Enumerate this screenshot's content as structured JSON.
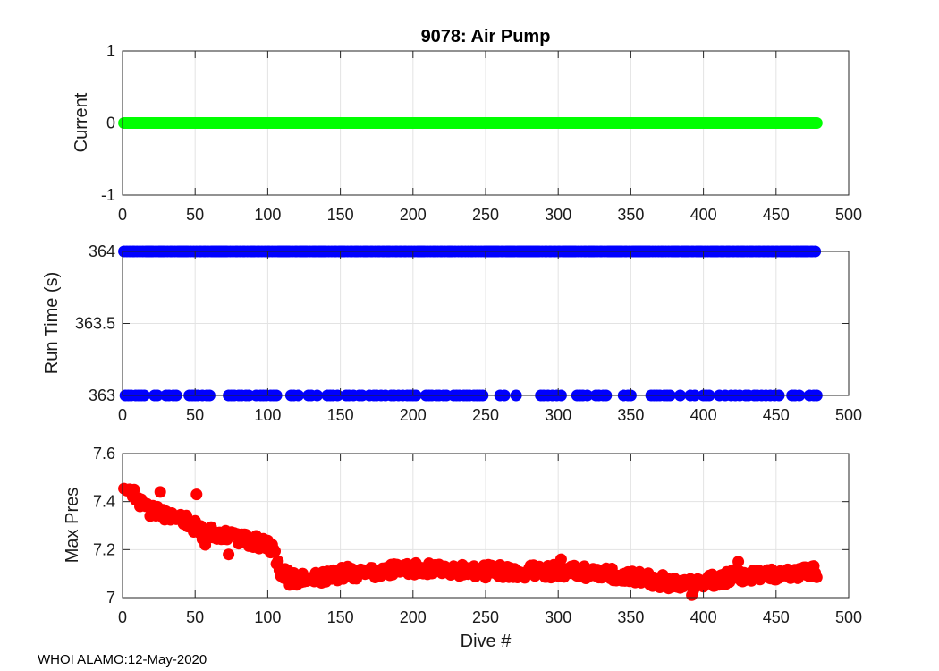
{
  "chart_data": {
    "type": "scatter",
    "title": "9078: Air Pump",
    "xlabel": "Dive #",
    "footer": "WHOI ALAMO:12-May-2020",
    "x_ticks": [
      "0",
      "50",
      "100",
      "150",
      "200",
      "250",
      "300",
      "350",
      "400",
      "450",
      "500"
    ],
    "xlim": [
      0,
      500
    ],
    "grid": true,
    "subplots": [
      {
        "ylabel": "Current",
        "ylim": [
          -1,
          1
        ],
        "y_ticks": [
          -1,
          0,
          1
        ],
        "y_tick_labels": [
          "-1",
          "0",
          "1"
        ],
        "color": "#00ff00",
        "series": {
          "name": "Current",
          "description": "constant value 0 for every dive 1-478",
          "x_range": [
            1,
            478
          ],
          "value": 0
        }
      },
      {
        "ylabel": "Run Time (s)",
        "ylim": [
          363,
          364
        ],
        "y_ticks": [
          363,
          363.5,
          364
        ],
        "y_tick_labels": [
          "363",
          "363.5",
          "364"
        ],
        "color": "#0000ff",
        "series": {
          "name": "Run Time",
          "x_range": [
            1,
            478
          ],
          "high_value": 364,
          "low_value": 363,
          "low_value_dives": [
            2,
            4,
            6,
            9,
            11,
            13,
            15,
            22,
            24,
            30,
            32,
            35,
            37,
            46,
            48,
            50,
            52,
            55,
            58,
            60,
            73,
            75,
            77,
            80,
            82,
            85,
            87,
            92,
            95,
            97,
            99,
            102,
            104,
            106,
            116,
            118,
            121,
            128,
            130,
            134,
            141,
            143,
            145,
            148,
            154,
            156,
            159,
            163,
            165,
            170,
            173,
            175,
            178,
            181,
            185,
            187,
            190,
            193,
            196,
            198,
            200,
            202,
            209,
            211,
            213,
            216,
            218,
            221,
            223,
            228,
            230,
            232,
            235,
            237,
            239,
            242,
            244,
            246,
            248,
            260,
            263,
            271,
            288,
            290,
            293,
            296,
            299,
            302,
            313,
            315,
            317,
            320,
            326,
            328,
            331,
            333,
            345,
            348,
            350,
            364,
            366,
            368,
            370,
            373,
            375,
            377,
            384,
            391,
            394,
            400,
            402,
            404,
            411,
            415,
            419,
            422,
            425,
            429,
            431,
            435,
            437,
            440,
            443,
            446,
            449,
            452,
            461,
            463,
            466,
            473,
            476,
            478
          ]
        }
      },
      {
        "ylabel": "Max Pres",
        "ylim": [
          7,
          7.6
        ],
        "y_ticks": [
          7,
          7.2,
          7.4,
          7.6
        ],
        "y_tick_labels": [
          "7",
          "7.2",
          "7.4",
          "7.6"
        ],
        "color": "#ff0000",
        "series": {
          "name": "Max Pres",
          "description": "about 7.44 at dive 1 declining to about 7.22 by dive 105, then dropping to about 7.08 and fluctuating around 7.07-7.12 through dive 478",
          "x_range": [
            1,
            478
          ],
          "anchors": [
            [
              1,
              7.44
            ],
            [
              5,
              7.44
            ],
            [
              20,
              7.36
            ],
            [
              40,
              7.34
            ],
            [
              55,
              7.27
            ],
            [
              70,
              7.26
            ],
            [
              85,
              7.24
            ],
            [
              100,
              7.22
            ],
            [
              104,
              7.21
            ],
            [
              108,
              7.12
            ],
            [
              115,
              7.08
            ],
            [
              130,
              7.08
            ],
            [
              150,
              7.1
            ],
            [
              200,
              7.12
            ],
            [
              250,
              7.11
            ],
            [
              300,
              7.11
            ],
            [
              350,
              7.09
            ],
            [
              390,
              7.05
            ],
            [
              400,
              7.06
            ],
            [
              420,
              7.09
            ],
            [
              450,
              7.1
            ],
            [
              478,
              7.11
            ]
          ],
          "noise": 0.028,
          "outliers": [
            [
              4,
              7.45
            ],
            [
              8,
              7.45
            ],
            [
              26,
              7.44
            ],
            [
              51,
              7.43
            ],
            [
              57,
              7.22
            ],
            [
              73,
              7.18
            ],
            [
              196,
              7.14
            ],
            [
              302,
              7.16
            ],
            [
              392,
              7.01
            ],
            [
              424,
              7.15
            ]
          ]
        }
      }
    ]
  }
}
